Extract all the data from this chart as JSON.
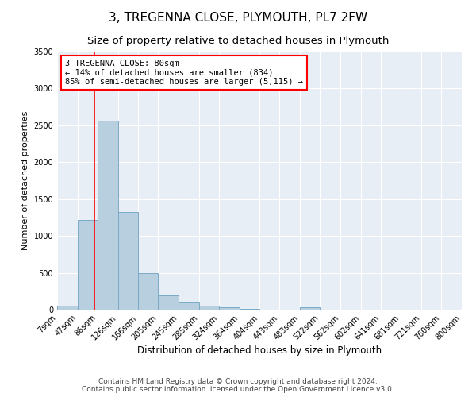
{
  "title": "3, TREGENNA CLOSE, PLYMOUTH, PL7 2FW",
  "subtitle": "Size of property relative to detached houses in Plymouth",
  "xlabel": "Distribution of detached houses by size in Plymouth",
  "ylabel": "Number of detached properties",
  "bin_edges": [
    7,
    47,
    86,
    126,
    166,
    205,
    245,
    285,
    324,
    364,
    404,
    443,
    483,
    522,
    562,
    602,
    641,
    681,
    721,
    760,
    800
  ],
  "bar_heights": [
    50,
    1220,
    2560,
    1320,
    500,
    190,
    110,
    50,
    30,
    10,
    5,
    5,
    30,
    5,
    5,
    5,
    5,
    5,
    5,
    5
  ],
  "bar_color": "#b8cfe0",
  "bar_edge_color": "#7aaac8",
  "bar_linewidth": 0.7,
  "vline_x": 80,
  "vline_color": "red",
  "vline_linewidth": 1.2,
  "annotation_text": "3 TREGENNA CLOSE: 80sqm\n← 14% of detached houses are smaller (834)\n85% of semi-detached houses are larger (5,115) →",
  "annotation_box_color": "white",
  "annotation_box_edge_color": "red",
  "ylim": [
    0,
    3500
  ],
  "yticks": [
    0,
    500,
    1000,
    1500,
    2000,
    2500,
    3000,
    3500
  ],
  "background_color": "#e8eef5",
  "grid_color": "white",
  "footer_line1": "Contains HM Land Registry data © Crown copyright and database right 2024.",
  "footer_line2": "Contains public sector information licensed under the Open Government Licence v3.0.",
  "title_fontsize": 11,
  "subtitle_fontsize": 9.5,
  "xlabel_fontsize": 8.5,
  "ylabel_fontsize": 8,
  "tick_fontsize": 7,
  "footer_fontsize": 6.5,
  "annot_fontsize": 7.5
}
